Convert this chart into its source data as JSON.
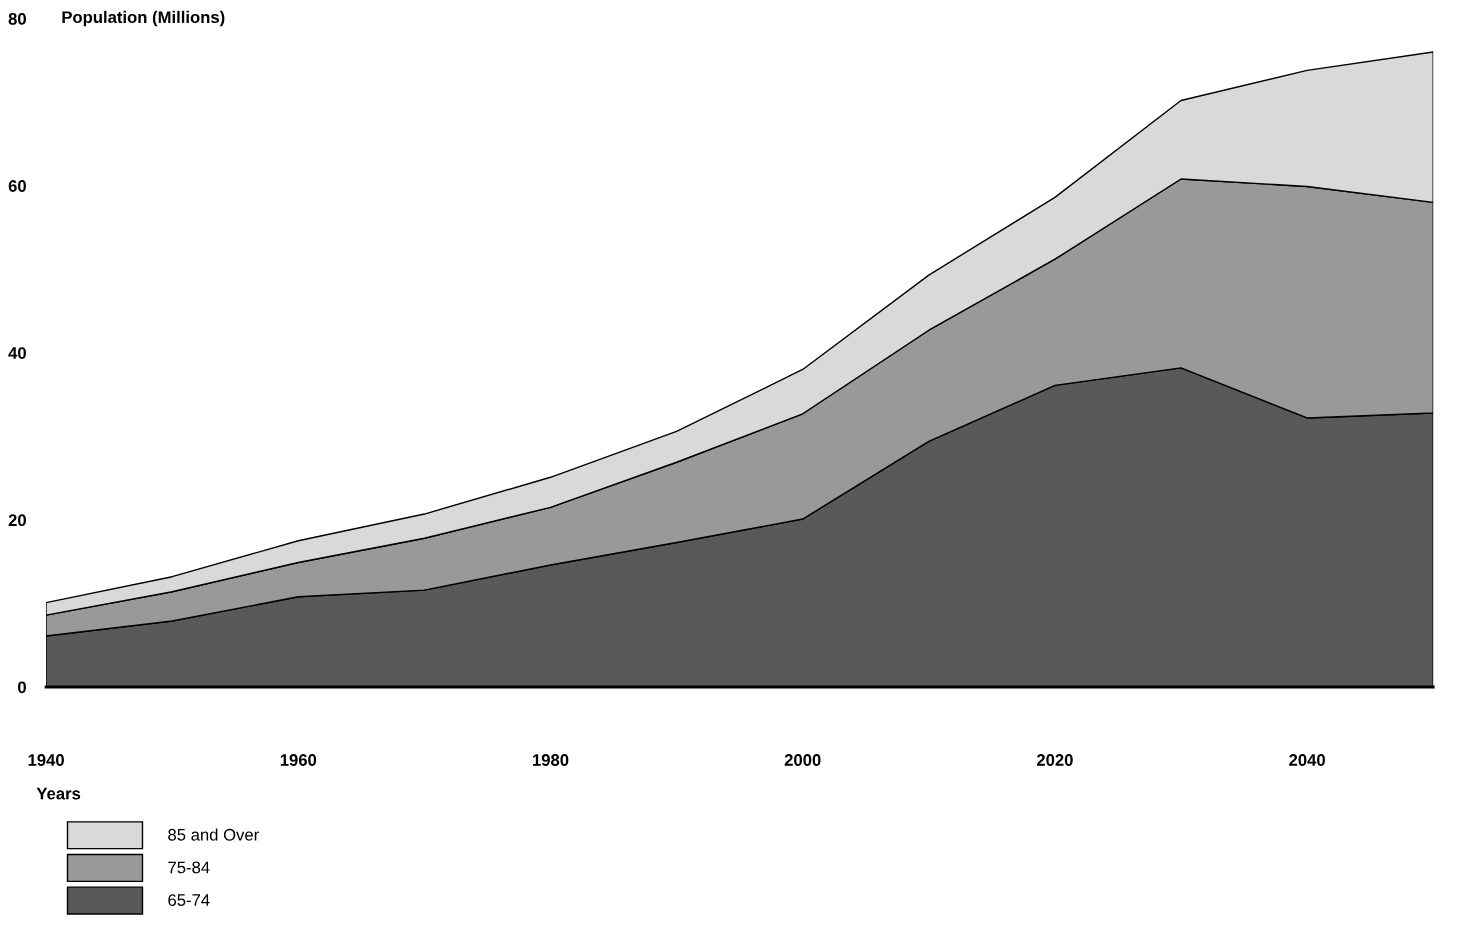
{
  "chart_data": {
    "type": "area",
    "stacked": true,
    "xlabel": "Years",
    "ylabel": "Population (Millions)",
    "x": [
      1940,
      1950,
      1960,
      1970,
      1980,
      1990,
      2000,
      2010,
      2020,
      2030,
      2040,
      2050
    ],
    "series": [
      {
        "name": "65-74",
        "color": "#595959",
        "values": [
          6.1,
          7.9,
          10.8,
          11.6,
          14.6,
          17.3,
          20.1,
          29.4,
          36.1,
          38.2,
          32.2,
          32.8
        ]
      },
      {
        "name": "75-84",
        "color": "#999999",
        "values": [
          2.5,
          3.5,
          4.1,
          6.2,
          6.9,
          9.6,
          12.6,
          13.3,
          15.1,
          22.6,
          27.7,
          25.2
        ]
      },
      {
        "name": "85 and Over",
        "color": "#d9d9d9",
        "values": [
          1.5,
          1.8,
          2.6,
          2.9,
          3.6,
          3.7,
          5.3,
          6.6,
          7.4,
          9.4,
          13.9,
          18.0
        ]
      }
    ],
    "xlim": [
      1940,
      2050
    ],
    "ylim": [
      0,
      80
    ],
    "xticks": [
      1940,
      1960,
      1980,
      2000,
      2020,
      2040
    ],
    "yticks": [
      0,
      20,
      40,
      60,
      80
    ],
    "grid": false,
    "legend": "bottom left"
  }
}
